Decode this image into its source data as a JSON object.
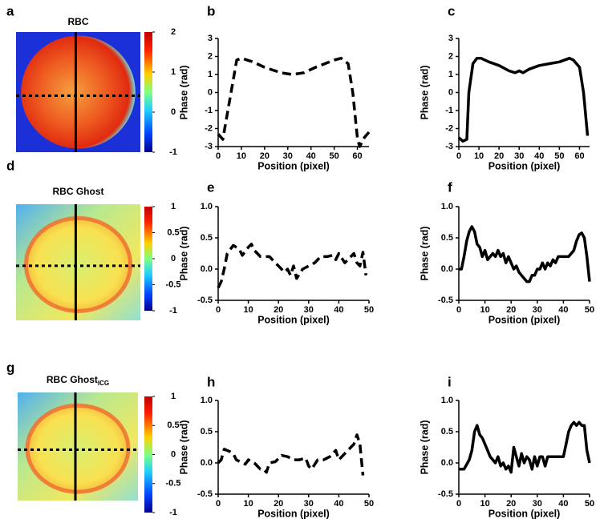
{
  "chart_data": [
    {
      "type": "image",
      "panel_label": "a",
      "title": "RBC",
      "colorbar": {
        "lim": [
          -1,
          2
        ],
        "ticks": [
          2,
          1,
          0,
          -1
        ]
      }
    },
    {
      "type": "line",
      "panel_label": "b",
      "xlabel": "Position (pixel)",
      "ylabel": "Phase (rad)",
      "line_style": "dashed",
      "color": "#000000",
      "x": [
        0,
        2,
        8,
        10,
        15,
        20,
        27,
        32,
        37,
        42,
        50,
        53,
        56,
        58,
        60,
        61,
        63,
        65
      ],
      "values": [
        -2.3,
        -2.6,
        1.8,
        1.9,
        1.7,
        1.4,
        1.1,
        1.0,
        1.1,
        1.4,
        1.8,
        1.9,
        1.6,
        0,
        -2.5,
        -3,
        -2.5,
        -2.2
      ],
      "xlim": [
        0,
        65
      ],
      "xticks": [
        0,
        10,
        20,
        30,
        40,
        50,
        60
      ],
      "ylim": [
        -3,
        3
      ],
      "yticks": [
        -3,
        -2,
        -1,
        0,
        1,
        2,
        3
      ]
    },
    {
      "type": "line",
      "panel_label": "c",
      "xlabel": "Position (pixel)",
      "ylabel": "Phase (rad)",
      "line_style": "solid",
      "color": "#000000",
      "x": [
        0,
        2,
        4,
        5,
        7,
        9,
        11,
        15,
        20,
        25,
        28,
        30,
        32,
        35,
        40,
        45,
        50,
        55,
        57,
        60,
        62,
        64
      ],
      "values": [
        -2.5,
        -2.7,
        -2.6,
        0,
        1.6,
        1.9,
        1.9,
        1.7,
        1.5,
        1.2,
        1.1,
        1.2,
        1.1,
        1.3,
        1.5,
        1.6,
        1.7,
        1.9,
        1.8,
        1.4,
        0,
        -2.4
      ],
      "xlim": [
        0,
        65
      ],
      "xticks": [
        0,
        10,
        20,
        30,
        40,
        50,
        60
      ],
      "ylim": [
        -3,
        3
      ],
      "yticks": [
        -3,
        -2,
        -1,
        0,
        1,
        2,
        3
      ]
    },
    {
      "type": "image",
      "panel_label": "d",
      "title": "RBC Ghost",
      "colorbar": {
        "lim": [
          -1,
          1
        ],
        "ticks": [
          1,
          0.5,
          0,
          -0.5,
          -1
        ]
      }
    },
    {
      "type": "line",
      "panel_label": "e",
      "xlabel": "Position (pixel)",
      "ylabel": "Phase (rad)",
      "line_style": "dashed",
      "color": "#000000",
      "x": [
        0,
        1,
        2,
        3,
        5,
        7,
        8,
        10,
        11,
        12,
        14,
        17,
        19,
        21,
        22,
        23,
        24,
        25,
        26,
        28,
        30,
        32,
        34,
        36,
        38,
        39,
        40,
        42,
        44,
        45,
        46,
        47,
        48,
        49
      ],
      "values": [
        -0.3,
        -0.2,
        0.0,
        0.25,
        0.38,
        0.32,
        0.22,
        0.35,
        0.4,
        0.3,
        0.2,
        0.2,
        0.1,
        0.0,
        -0.05,
        0.0,
        -0.1,
        0.05,
        -0.15,
        0,
        0.05,
        0.1,
        0.2,
        0.2,
        0.22,
        0.15,
        0.25,
        0.1,
        0.2,
        0.25,
        0.1,
        0.05,
        0.27,
        -0.1
      ],
      "xlim": [
        0,
        50
      ],
      "xticks": [
        0,
        10,
        20,
        30,
        40,
        50
      ],
      "ylim": [
        -0.5,
        1
      ],
      "yticks": [
        {
          "value": -0.5,
          "label": "-0.5"
        },
        {
          "value": 0,
          "label": "0.0"
        },
        {
          "value": 0.5,
          "label": "0.5"
        },
        {
          "value": 1,
          "label": "1.0"
        }
      ]
    },
    {
      "type": "line",
      "panel_label": "f",
      "xlabel": "Position (pixel)",
      "ylabel": "Phase (rad)",
      "line_style": "solid",
      "color": "#000000",
      "x": [
        0,
        1,
        2,
        3,
        4,
        5,
        6,
        7,
        8,
        9,
        10,
        11,
        12,
        13,
        14,
        15,
        16,
        17,
        18,
        19,
        20,
        21,
        22,
        23,
        24,
        25,
        26,
        27,
        28,
        29,
        30,
        31,
        32,
        33,
        34,
        35,
        36,
        37,
        38,
        40,
        42,
        44,
        45,
        46,
        47,
        48,
        49,
        50
      ],
      "values": [
        0,
        0,
        0.2,
        0.45,
        0.6,
        0.68,
        0.6,
        0.4,
        0.35,
        0.2,
        0.3,
        0.15,
        0.2,
        0.25,
        0.2,
        0.3,
        0.2,
        0.25,
        0.1,
        0.2,
        0.1,
        0.0,
        0.05,
        -0.05,
        -0.1,
        -0.15,
        -0.2,
        -0.2,
        -0.1,
        -0.1,
        0,
        0,
        0.1,
        0,
        0.1,
        0.05,
        0.15,
        0.1,
        0.2,
        0.2,
        0.2,
        0.3,
        0.45,
        0.55,
        0.58,
        0.5,
        0.2,
        -0.2
      ],
      "xlim": [
        0,
        50
      ],
      "xticks": [
        0,
        10,
        20,
        30,
        40,
        50
      ],
      "ylim": [
        -0.5,
        1
      ],
      "yticks": [
        {
          "value": -0.5,
          "label": "-0.5"
        },
        {
          "value": 0,
          "label": "0.0"
        },
        {
          "value": 0.5,
          "label": "0.5"
        },
        {
          "value": 1,
          "label": "1.0"
        }
      ]
    },
    {
      "type": "image",
      "panel_label": "g",
      "title": "RBC Ghost",
      "title_subscript": "ICG",
      "colorbar": {
        "lim": [
          -1,
          1
        ],
        "ticks": [
          1,
          0.5,
          0,
          -0.5,
          -1
        ]
      }
    },
    {
      "type": "line",
      "panel_label": "h",
      "xlabel": "Position (pixel)",
      "ylabel": "Phase (rad)",
      "line_style": "dashed",
      "color": "#000000",
      "x": [
        0,
        1,
        2,
        4,
        5,
        6,
        8,
        9,
        10,
        12,
        14,
        15,
        16,
        17,
        19,
        21,
        23,
        25,
        27,
        29,
        30,
        31,
        33,
        35,
        37,
        39,
        40,
        42,
        44,
        45,
        46,
        47,
        48
      ],
      "values": [
        0.0,
        0.05,
        0.22,
        0.18,
        0.15,
        0.05,
        0.0,
        -0.02,
        0.05,
        0.0,
        -0.1,
        -0.1,
        -0.15,
        0.0,
        0.02,
        0.12,
        0.1,
        0.05,
        0.05,
        0.08,
        -0.05,
        -0.1,
        0.05,
        0.05,
        0.1,
        0.2,
        0.05,
        0.15,
        0.25,
        0.3,
        0.45,
        0.3,
        -0.2
      ],
      "xlim": [
        0,
        50
      ],
      "xticks": [
        0,
        10,
        20,
        30,
        40,
        50
      ],
      "ylim": [
        -0.5,
        1
      ],
      "yticks": [
        {
          "value": -0.5,
          "label": "-0.5"
        },
        {
          "value": 0,
          "label": "0.0"
        },
        {
          "value": 0.5,
          "label": "0.5"
        },
        {
          "value": 1,
          "label": "1.0"
        }
      ]
    },
    {
      "type": "line",
      "panel_label": "i",
      "xlabel": "Position (pixel)",
      "ylabel": "Phase (rad)",
      "line_style": "solid",
      "color": "#000000",
      "x": [
        0,
        2,
        4,
        5,
        6,
        7,
        8,
        9,
        10,
        11,
        12,
        13,
        14,
        15,
        16,
        17,
        18,
        19,
        20,
        21,
        22,
        23,
        24,
        25,
        26,
        27,
        28,
        29,
        30,
        31,
        32,
        33,
        34,
        36,
        38,
        40,
        41,
        42,
        43,
        44,
        45,
        46,
        47,
        48,
        49,
        50
      ],
      "values": [
        -0.1,
        -0.1,
        0.05,
        0.2,
        0.5,
        0.6,
        0.45,
        0.4,
        0.3,
        0.2,
        0.1,
        0.05,
        0,
        0.1,
        -0.05,
        0.0,
        -0.1,
        -0.05,
        -0.15,
        0.25,
        0.1,
        -0.05,
        0.15,
        0.0,
        0.1,
        0.05,
        -0.1,
        0.1,
        -0.05,
        0.1,
        0.1,
        -0.05,
        0.1,
        0.1,
        0.1,
        0.1,
        0.3,
        0.5,
        0.6,
        0.65,
        0.6,
        0.65,
        0.6,
        0.6,
        0.2,
        0
      ],
      "xlim": [
        0,
        50
      ],
      "xticks": [
        0,
        10,
        20,
        30,
        40,
        50
      ],
      "ylim": [
        -0.5,
        1
      ],
      "yticks": [
        {
          "value": -0.5,
          "label": "-0.5"
        },
        {
          "value": 0,
          "label": "0.0"
        },
        {
          "value": 0.5,
          "label": "0.5"
        },
        {
          "value": 1,
          "label": "1.0"
        }
      ]
    }
  ]
}
